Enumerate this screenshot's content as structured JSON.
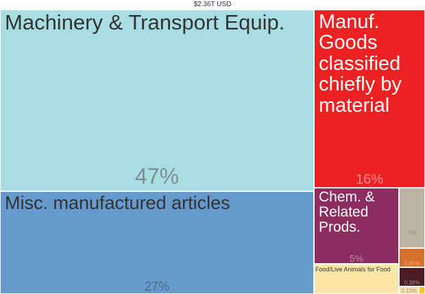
{
  "chart_data": {
    "type": "treemap",
    "title": "$2.36T USD",
    "items": [
      {
        "name": "Machinery & Transport Equip.",
        "share": "47%",
        "value": 47,
        "color": "#a8dde4",
        "label_color": "#333333",
        "pct_color": "#7f8e91"
      },
      {
        "name": "Misc. manufactured articles",
        "share": "27%",
        "value": 27,
        "color": "#6699cc",
        "label_color": "#333333",
        "pct_color": "#4d6d8f"
      },
      {
        "name": "Manuf. Goods classified chiefly by material",
        "share": "16%",
        "value": 16,
        "color": "#ee2222",
        "label_color": "#ffffff",
        "pct_color": "#f08a8a"
      },
      {
        "name": "Chem. & Related Prods.",
        "share": "5%",
        "value": 5,
        "color": "#8b2e5f",
        "label_color": "#ffffff",
        "pct_color": "#b58aa3"
      },
      {
        "name": "Food/Live Animals for Food",
        "share": "",
        "value": 1.9,
        "color": "#fde7a8",
        "label_color": "#333333",
        "pct_color": "#a89a70"
      },
      {
        "name": "",
        "share": "1%",
        "value": 1.2,
        "color": "#b9b3a4",
        "label_color": "#333333",
        "pct_color": "#8e887a"
      },
      {
        "name": "",
        "share": "0.65%",
        "value": 0.65,
        "color": "#d6712d",
        "label_color": "#333333",
        "pct_color": "#ecae85"
      },
      {
        "name": "",
        "share": "0.38%",
        "value": 0.38,
        "color": "#4a1c22",
        "label_color": "#ffffff",
        "pct_color": "#a8888b"
      },
      {
        "name": "",
        "share": "0.12%",
        "value": 0.12,
        "color": "#f5e0b0",
        "label_color": "#333333",
        "pct_color": "#a89a70"
      },
      {
        "name": "",
        "share": "",
        "value": 0.05,
        "color": "#f2c12e",
        "label_color": "#333333",
        "pct_color": "#a08020"
      }
    ]
  }
}
